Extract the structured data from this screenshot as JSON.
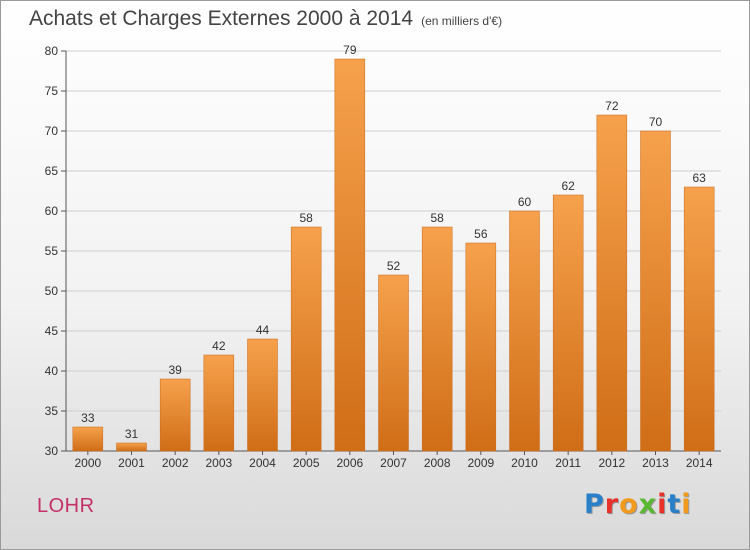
{
  "header": {
    "title": "Achats et Charges Externes 2000 à 2014",
    "subtitle": "(en milliers d'€)"
  },
  "footer": {
    "commune": "LOHR",
    "logo": {
      "text": "Proxiti",
      "letter_colors": [
        "#2a7fc9",
        "#e8312a",
        "#f29a1e",
        "#5bb832",
        "#e8312a",
        "#2a7fc9",
        "#f29a1e"
      ]
    }
  },
  "colors": {
    "bar_top": "#f6a14c",
    "bar_bottom": "#d06d17",
    "bar_edge": "#c8681a",
    "grid": "#cfcfcf",
    "axis": "#555555",
    "commune": "#c4306a"
  },
  "chart_data": {
    "type": "bar",
    "title": "Achats et Charges Externes 2000 à 2014",
    "subtitle": "(en milliers d'€)",
    "categories": [
      "2000",
      "2001",
      "2002",
      "2003",
      "2004",
      "2005",
      "2006",
      "2007",
      "2008",
      "2009",
      "2010",
      "2011",
      "2012",
      "2013",
      "2014"
    ],
    "values": [
      33,
      31,
      39,
      42,
      44,
      58,
      79,
      52,
      58,
      56,
      60,
      62,
      72,
      70,
      63
    ],
    "ylim": [
      30,
      80
    ],
    "yticks": [
      30,
      35,
      40,
      45,
      50,
      55,
      60,
      65,
      70,
      75,
      80
    ],
    "grid": true,
    "xlabel": "",
    "ylabel": ""
  }
}
